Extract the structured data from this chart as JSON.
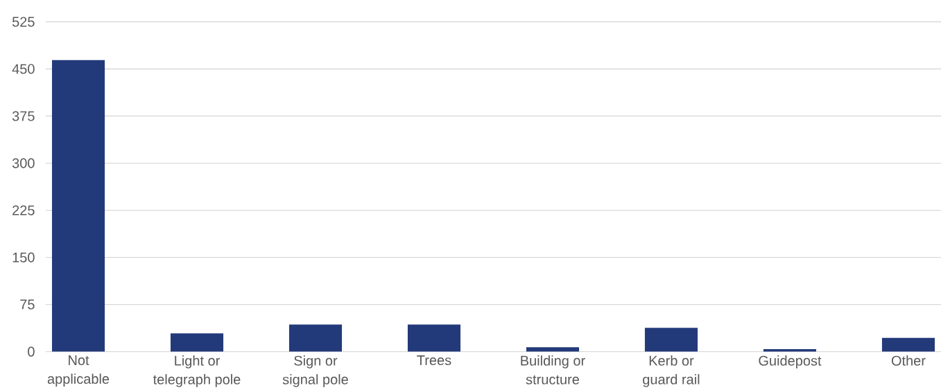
{
  "chart_data": {
    "type": "bar",
    "categories": [
      "Not applicable",
      "Light or telegraph pole",
      "Sign or signal pole",
      "Trees",
      "Building or structure",
      "Kerb or guard rail",
      "Guidepost",
      "Other"
    ],
    "values": [
      464,
      29,
      43,
      43,
      7,
      38,
      4,
      22
    ],
    "color": "#233a7a",
    "ylim": [
      0,
      525
    ],
    "yticks": [
      0,
      75,
      150,
      225,
      300,
      375,
      450,
      525
    ],
    "grid": "y"
  }
}
